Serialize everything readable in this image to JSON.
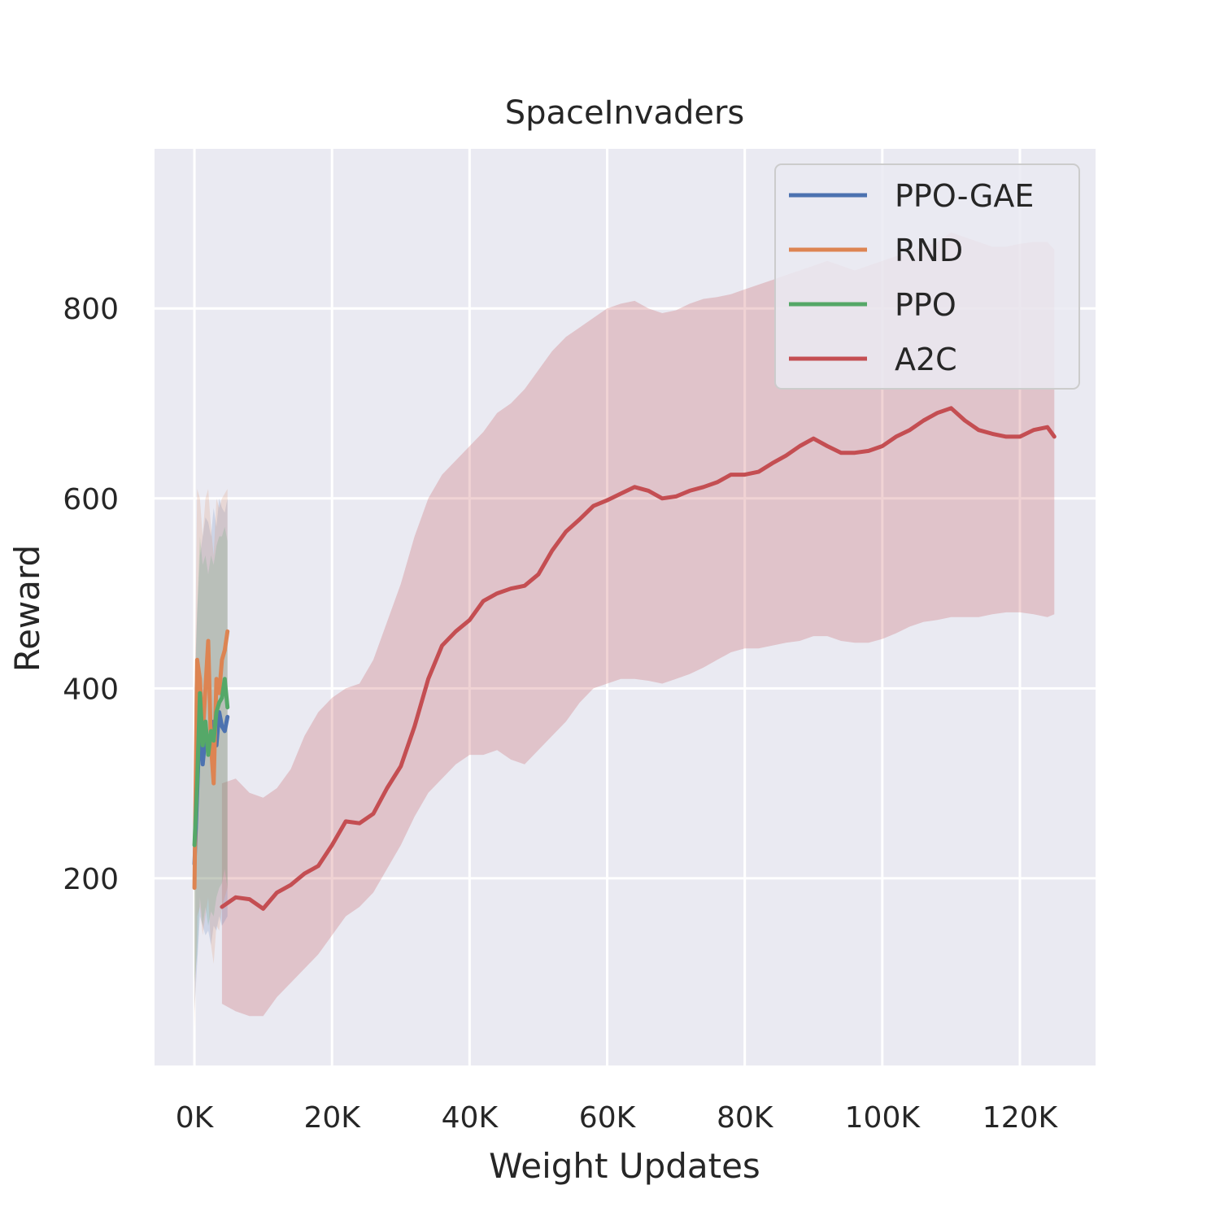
{
  "chart_data": {
    "type": "line",
    "title": "SpaceInvaders",
    "xlabel": "Weight Updates",
    "ylabel": "Reward",
    "xlim": [
      -5800,
      131000
    ],
    "ylim": [
      3,
      968
    ],
    "x_ticks": [
      0,
      20000,
      40000,
      60000,
      80000,
      100000,
      120000
    ],
    "x_tick_labels": [
      "0K",
      "20K",
      "40K",
      "60K",
      "80K",
      "100K",
      "120K"
    ],
    "y_ticks": [
      200,
      400,
      600,
      800
    ],
    "y_tick_labels": [
      "200",
      "400",
      "600",
      "800"
    ],
    "grid": true,
    "background": "#eaeaf2",
    "legend_position": "top-right",
    "series": [
      {
        "name": "PPO-GAE",
        "color": "#4c72b0",
        "x": [
          0,
          400,
          800,
          1200,
          1600,
          2000,
          2400,
          2800,
          3200,
          3600,
          4000,
          4400,
          4800
        ],
        "y": [
          215,
          290,
          370,
          320,
          350,
          345,
          330,
          365,
          340,
          375,
          360,
          355,
          370
        ],
        "upper": [
          400,
          480,
          540,
          560,
          580,
          575,
          560,
          590,
          570,
          600,
          590,
          585,
          600
        ],
        "lower": [
          60,
          110,
          160,
          150,
          140,
          145,
          130,
          150,
          145,
          160,
          150,
          155,
          160
        ]
      },
      {
        "name": "RND",
        "color": "#dd8452",
        "x": [
          0,
          400,
          800,
          1200,
          1600,
          2000,
          2400,
          2800,
          3200,
          3600,
          4000,
          4400,
          4800
        ],
        "y": [
          190,
          430,
          410,
          350,
          400,
          450,
          340,
          300,
          410,
          395,
          430,
          440,
          460
        ],
        "upper": [
          380,
          610,
          600,
          560,
          600,
          610,
          570,
          540,
          600,
          590,
          600,
          605,
          610
        ],
        "lower": [
          40,
          160,
          170,
          140,
          160,
          180,
          130,
          110,
          150,
          145,
          170,
          180,
          190
        ]
      },
      {
        "name": "PPO",
        "color": "#55a868",
        "x": [
          0,
          400,
          800,
          1200,
          1600,
          2000,
          2400,
          2800,
          3200,
          3600,
          4000,
          4400,
          4800
        ],
        "y": [
          235,
          300,
          395,
          340,
          365,
          330,
          355,
          345,
          375,
          385,
          390,
          410,
          380
        ],
        "upper": [
          380,
          480,
          560,
          530,
          540,
          520,
          540,
          530,
          550,
          560,
          560,
          570,
          555
        ],
        "lower": [
          90,
          120,
          180,
          150,
          170,
          150,
          165,
          160,
          180,
          190,
          195,
          210,
          190
        ]
      },
      {
        "name": "A2C",
        "color": "#c44e52",
        "x": [
          4000,
          6000,
          8000,
          10000,
          12000,
          14000,
          16000,
          18000,
          20000,
          22000,
          24000,
          26000,
          28000,
          30000,
          32000,
          34000,
          36000,
          38000,
          40000,
          42000,
          44000,
          46000,
          48000,
          50000,
          52000,
          54000,
          56000,
          58000,
          60000,
          62000,
          64000,
          66000,
          68000,
          70000,
          72000,
          74000,
          76000,
          78000,
          80000,
          82000,
          84000,
          86000,
          88000,
          90000,
          92000,
          94000,
          96000,
          98000,
          100000,
          102000,
          104000,
          106000,
          108000,
          110000,
          112000,
          114000,
          116000,
          118000,
          120000,
          122000,
          124000,
          125000
        ],
        "y": [
          170,
          180,
          178,
          168,
          185,
          193,
          205,
          213,
          235,
          260,
          258,
          268,
          295,
          318,
          360,
          410,
          445,
          460,
          472,
          492,
          500,
          505,
          508,
          520,
          545,
          565,
          578,
          592,
          598,
          605,
          612,
          608,
          600,
          602,
          608,
          612,
          617,
          625,
          625,
          628,
          637,
          645,
          655,
          663,
          655,
          648,
          648,
          650,
          655,
          665,
          672,
          682,
          690,
          695,
          682,
          672,
          668,
          665,
          665,
          672,
          675,
          665
        ],
        "upper": [
          300,
          305,
          290,
          285,
          295,
          315,
          350,
          375,
          390,
          400,
          405,
          430,
          470,
          510,
          560,
          600,
          625,
          640,
          655,
          670,
          690,
          700,
          715,
          735,
          755,
          770,
          780,
          790,
          800,
          805,
          808,
          800,
          795,
          798,
          805,
          810,
          812,
          815,
          820,
          825,
          830,
          835,
          840,
          845,
          850,
          845,
          840,
          845,
          850,
          855,
          860,
          865,
          870,
          880,
          875,
          870,
          865,
          865,
          868,
          870,
          870,
          862
        ],
        "lower": [
          68,
          60,
          55,
          55,
          75,
          90,
          105,
          120,
          140,
          160,
          170,
          185,
          210,
          235,
          265,
          290,
          305,
          320,
          330,
          330,
          335,
          325,
          320,
          335,
          350,
          365,
          385,
          400,
          405,
          410,
          410,
          408,
          405,
          410,
          415,
          422,
          430,
          438,
          442,
          442,
          445,
          448,
          450,
          455,
          455,
          450,
          448,
          448,
          452,
          458,
          465,
          470,
          472,
          475,
          475,
          475,
          478,
          480,
          480,
          478,
          475,
          478
        ]
      }
    ]
  }
}
